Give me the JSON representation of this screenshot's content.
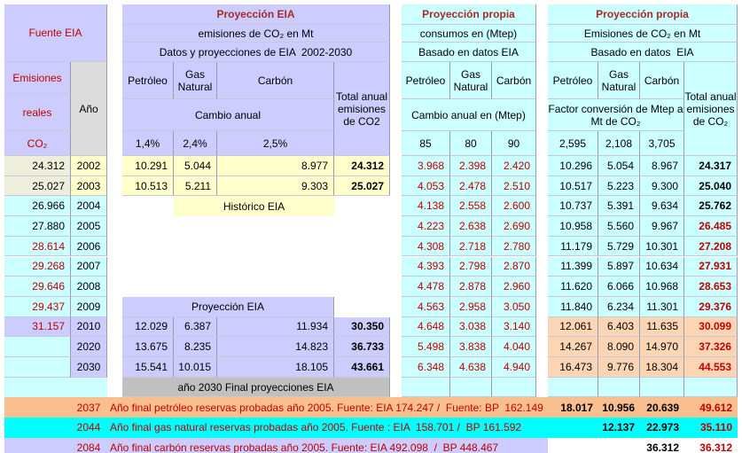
{
  "header": {
    "fuente": "Fuente EIA",
    "emisiones": "Emisiones",
    "reales": "reales",
    "co2": "CO₂",
    "ano": "Año"
  },
  "eia": {
    "title": "Proyección EIA",
    "subtitle": "emisiones de CO₂ en Mt",
    "datos": "Datos y proyecciones de EIA  2002-2030",
    "cols": [
      "Petróleo",
      "Gas Natural",
      "Carbón"
    ],
    "total": "Total anual emisiones de CO2",
    "cambio": "Cambio anual",
    "rates": [
      "1,4%",
      "2,4%",
      "2,5%"
    ],
    "historico": "Histórico EIA",
    "proyeccion": "Proyección EIA",
    "final": "año 2030 Final proyecciones EIA"
  },
  "consumo": {
    "title": "Proyección propia",
    "subtitle": "consumos en (Mtep)",
    "basado": "Basado en datos EIA",
    "cols": [
      "Petróleo",
      "Gas Natural",
      "Carbón"
    ],
    "cambio": "Cambio anual en (Mtep)",
    "rates": [
      "85",
      "80",
      "90"
    ]
  },
  "emis": {
    "title": "Proyección propia",
    "subtitle": "Emisiones de CO₂ en Mt",
    "basado": "Basado en datos  EIA",
    "cols": [
      "Petróleo",
      "Gas Natural",
      "Carbón"
    ],
    "total": "Total anual emisiones de CO₂",
    "factor": "Factor conversión de Mtep a Mt de CO₂",
    "factors": [
      "2,595",
      "2,108",
      "3,705"
    ]
  },
  "rows": [
    {
      "reales": "24.312",
      "year": "2002",
      "eia": [
        "10.291",
        "5.044",
        "8.977",
        "24.312"
      ],
      "consumo": [
        "3.968",
        "2.398",
        "2.420"
      ],
      "emis": [
        "10.296",
        "5.054",
        "8.967",
        "24.317"
      ]
    },
    {
      "reales": "25.027",
      "year": "2003",
      "eia": [
        "10.513",
        "5.211",
        "9.303",
        "25.027"
      ],
      "consumo": [
        "4.053",
        "2.478",
        "2.510"
      ],
      "emis": [
        "10.517",
        "5.223",
        "9.300",
        "25.040"
      ]
    },
    {
      "reales": "26.966",
      "year": "2004",
      "eia": null,
      "consumo": [
        "4.138",
        "2.558",
        "2.600"
      ],
      "emis": [
        "10.737",
        "5.391",
        "9.634",
        "25.762"
      ]
    },
    {
      "reales": "27.880",
      "year": "2005",
      "eia": null,
      "consumo": [
        "4.223",
        "2.638",
        "2.690"
      ],
      "emis": [
        "10.958",
        "5.560",
        "9.967",
        "26.485"
      ]
    },
    {
      "reales": "28.614",
      "year": "2006",
      "eia": null,
      "consumo": [
        "4.308",
        "2.718",
        "2.780"
      ],
      "emis": [
        "11.179",
        "5.729",
        "10.301",
        "27.208"
      ]
    },
    {
      "reales": "29.268",
      "year": "2007",
      "eia": null,
      "consumo": [
        "4.393",
        "2.798",
        "2.870"
      ],
      "emis": [
        "11.399",
        "5.897",
        "10.634",
        "27.931"
      ]
    },
    {
      "reales": "29.646",
      "year": "2008",
      "eia": null,
      "consumo": [
        "4.478",
        "2.878",
        "2.960"
      ],
      "emis": [
        "11.620",
        "6.066",
        "10.968",
        "28.653"
      ]
    },
    {
      "reales": "29.437",
      "year": "2009",
      "eia": null,
      "consumo": [
        "4.563",
        "2.958",
        "3.050"
      ],
      "emis": [
        "11.840",
        "6.234",
        "11.301",
        "29.376"
      ]
    },
    {
      "reales": "31.157",
      "year": "2010",
      "eia": [
        "12.029",
        "6.387",
        "11.934",
        "30.350"
      ],
      "consumo": [
        "4.648",
        "3.038",
        "3.140"
      ],
      "emis": [
        "12.061",
        "6.403",
        "11.635",
        "30.099"
      ]
    },
    {
      "reales": null,
      "year": "2020",
      "eia": [
        "13.675",
        "8.235",
        "14.823",
        "36.733"
      ],
      "consumo": [
        "5.498",
        "3.838",
        "4.040"
      ],
      "emis": [
        "14.267",
        "8.090",
        "14.970",
        "37.326"
      ]
    },
    {
      "reales": null,
      "year": "2030",
      "eia": [
        "15.541",
        "10.015",
        "18.105",
        "43.661"
      ],
      "consumo": [
        "6.348",
        "4.638",
        "4.940"
      ],
      "emis": [
        "16.473",
        "9.776",
        "18.304",
        "44.553"
      ]
    }
  ],
  "footer": [
    {
      "year": "2037",
      "text": "Año final petróleo reservas probadas año 2005. Fuente: EIA 174.247 /  Fuente: BP  162.149",
      "emis": [
        "18.017",
        "10.956",
        "20.639",
        "49.612"
      ]
    },
    {
      "year": "2044",
      "text": "Año final gas natural reservas probadas año 2005. Fuente : EIA  158.701 /  BP 161.592",
      "emis": [
        null,
        "12.137",
        "22.973",
        "35.110"
      ]
    },
    {
      "year": "2084",
      "text": "Año final carbón reservas probadas año 2005. Fuente: EIA 492.098  /  BP 448.467",
      "emis": [
        null,
        null,
        "36.312",
        "36.312"
      ]
    }
  ]
}
